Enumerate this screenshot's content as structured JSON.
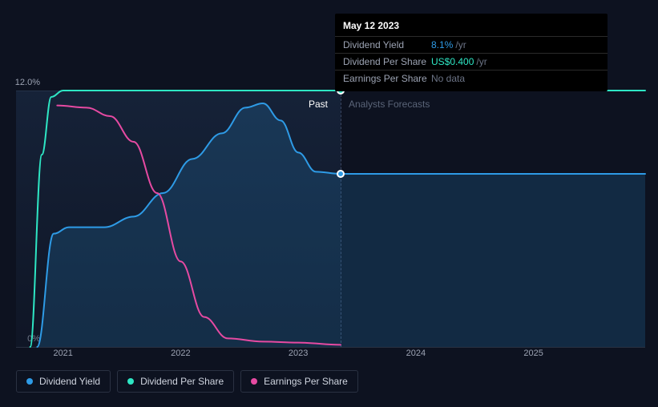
{
  "chart": {
    "type": "line",
    "background_color": "#0d1220",
    "grid_color": "#2a3142",
    "axis_label_color": "#9ca3b3",
    "axis_fontsize": 11,
    "y": {
      "min": 0,
      "max": 12,
      "ticks": [
        {
          "v": 0,
          "label": "0%"
        },
        {
          "v": 12,
          "label": "12.0%"
        }
      ]
    },
    "x": {
      "min": 2020.6,
      "max": 2025.95,
      "ticks": [
        {
          "v": 2021,
          "label": "2021"
        },
        {
          "v": 2022,
          "label": "2022"
        },
        {
          "v": 2023,
          "label": "2023"
        },
        {
          "v": 2024,
          "label": "2024"
        },
        {
          "v": 2025,
          "label": "2025"
        }
      ]
    },
    "divider_x": 2023.36,
    "past_label": "Past",
    "forecast_label": "Analysts Forecasts",
    "past_fill_gradient": [
      "rgba(30,50,80,0.5)",
      "rgba(20,30,50,0.3)"
    ],
    "series": [
      {
        "key": "dividend_yield",
        "label": "Dividend Yield",
        "color": "#2e9be6",
        "line_width": 2,
        "area_fill": "rgba(46,155,230,0.18)",
        "points": [
          [
            2020.78,
            0.0
          ],
          [
            2020.92,
            5.3
          ],
          [
            2021.05,
            5.6
          ],
          [
            2021.35,
            5.6
          ],
          [
            2021.6,
            6.1
          ],
          [
            2021.85,
            7.2
          ],
          [
            2022.1,
            8.8
          ],
          [
            2022.35,
            10.0
          ],
          [
            2022.55,
            11.2
          ],
          [
            2022.7,
            11.4
          ],
          [
            2022.85,
            10.6
          ],
          [
            2023.0,
            9.1
          ],
          [
            2023.15,
            8.2
          ],
          [
            2023.36,
            8.1
          ],
          [
            2025.95,
            8.1
          ]
        ]
      },
      {
        "key": "dividend_per_share",
        "label": "Dividend Per Share",
        "color": "#2ee6c4",
        "line_width": 2,
        "points": [
          [
            2020.72,
            0.0
          ],
          [
            2020.82,
            9.0
          ],
          [
            2020.9,
            11.7
          ],
          [
            2021.0,
            12.0
          ],
          [
            2025.95,
            12.0
          ]
        ]
      },
      {
        "key": "earnings_per_share",
        "label": "Earnings Per Share",
        "color": "#e64aa2",
        "line_width": 2,
        "points": [
          [
            2020.95,
            11.3
          ],
          [
            2021.2,
            11.2
          ],
          [
            2021.4,
            10.8
          ],
          [
            2021.6,
            9.6
          ],
          [
            2021.8,
            7.2
          ],
          [
            2022.0,
            4.0
          ],
          [
            2022.2,
            1.4
          ],
          [
            2022.4,
            0.4
          ],
          [
            2022.7,
            0.25
          ],
          [
            2023.0,
            0.2
          ],
          [
            2023.36,
            0.1
          ]
        ]
      }
    ],
    "markers": [
      {
        "series": "dividend_per_share",
        "x": 2023.36,
        "y": 12.0,
        "fill": "#2ee6c4"
      },
      {
        "series": "dividend_yield",
        "x": 2023.36,
        "y": 8.1,
        "fill": "#2e9be6"
      }
    ]
  },
  "tooltip": {
    "date": "May 12 2023",
    "rows": [
      {
        "label": "Dividend Yield",
        "value": "8.1%",
        "unit": "/yr",
        "color": "#2e9be6"
      },
      {
        "label": "Dividend Per Share",
        "value": "US$0.400",
        "unit": "/yr",
        "color": "#2ee6c4"
      },
      {
        "label": "Earnings Per Share",
        "value": "No data",
        "unit": "",
        "color": "#6b7385"
      }
    ]
  },
  "legend": [
    {
      "label": "Dividend Yield",
      "color": "#2e9be6"
    },
    {
      "label": "Dividend Per Share",
      "color": "#2ee6c4"
    },
    {
      "label": "Earnings Per Share",
      "color": "#e64aa2"
    }
  ]
}
